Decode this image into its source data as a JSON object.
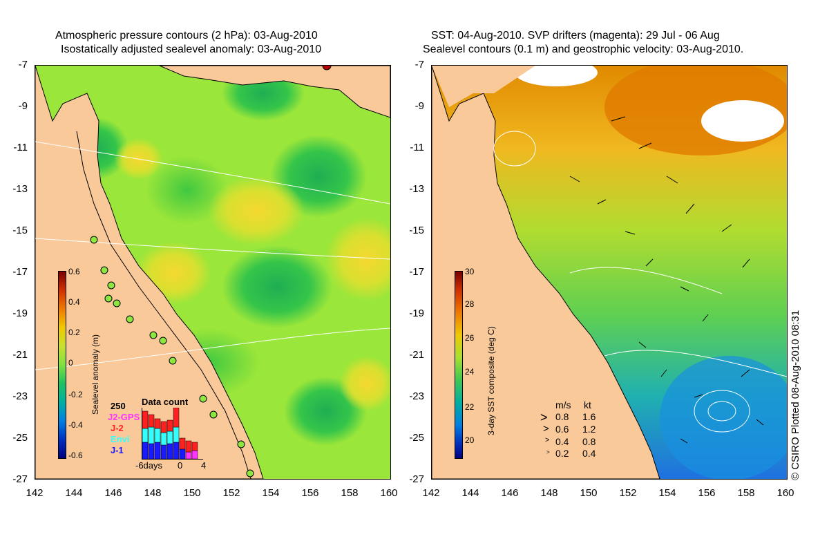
{
  "left_panel": {
    "title_line1": "Atmospheric pressure contours (2 hPa): 03-Aug-2010",
    "title_line2": "Isostatically adjusted sealevel anomaly: 03-Aug-2010",
    "colorbar": {
      "label": "Sealevel anomaly (m)",
      "ticks": [
        "0.6",
        "0.4",
        "0.2",
        "0",
        "-0.2",
        "-0.4",
        "-0.6"
      ]
    },
    "data_count": {
      "title": "Data count",
      "max_label": "250",
      "legend": [
        {
          "label": "J2-GPS",
          "color": "#ff33ff"
        },
        {
          "label": "J-2",
          "color": "#ff2020"
        },
        {
          "label": "Envi",
          "color": "#33ffff"
        },
        {
          "label": "J-1",
          "color": "#1a1aff"
        }
      ],
      "xticks": [
        "-6days",
        "0",
        "4"
      ]
    }
  },
  "right_panel": {
    "title_line1": "SST: 04-Aug-2010. SVP drifters (magenta): 29 Jul - 06 Aug",
    "title_line2": "Sealevel contours (0.1 m) and geostrophic velocity: 03-Aug-2010.",
    "colorbar": {
      "label": "3-day SST composite (deg C)",
      "ticks": [
        "30",
        "28",
        "26",
        "24",
        "22",
        "20"
      ]
    },
    "velocity_legend": {
      "header_ms": "m/s",
      "header_kt": "kt",
      "rows": [
        {
          "ms": "0.8",
          "kt": "1.6"
        },
        {
          "ms": "0.6",
          "kt": "1.2"
        },
        {
          "ms": "0.4",
          "kt": "0.8"
        },
        {
          "ms": "0.2",
          "kt": "0.4"
        }
      ]
    },
    "copyright": "© CSIRO Plotted 08-Aug-2010 08:31"
  },
  "axes": {
    "y_ticks": [
      "-7",
      "-9",
      "-11",
      "-13",
      "-15",
      "-17",
      "-19",
      "-21",
      "-23",
      "-25",
      "-27"
    ],
    "x_ticks": [
      "142",
      "144",
      "146",
      "148",
      "150",
      "152",
      "154",
      "156",
      "158",
      "160"
    ]
  },
  "colors": {
    "land": "#f9c99a",
    "sea_anomaly_base": "#8ee640",
    "sst_base": "#7ad84a"
  }
}
